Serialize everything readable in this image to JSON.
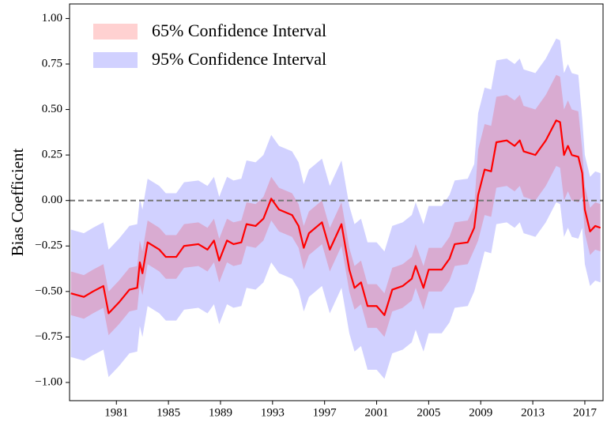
{
  "chart_data": {
    "type": "band-line",
    "y_label": "Bias Coefficient",
    "xlim": [
      1977.4,
      2018.4
    ],
    "xticks": [
      1981,
      1985,
      1989,
      1993,
      1997,
      2001,
      2005,
      2009,
      2013,
      2017
    ],
    "ylim": [
      -1.1,
      1.08
    ],
    "yticks": [
      {
        "value": -1,
        "label": "−1.00"
      },
      {
        "value": -0.75,
        "label": "−0.75"
      },
      {
        "value": -0.5,
        "label": "−0.50"
      },
      {
        "value": -0.25,
        "label": "−0.25"
      },
      {
        "value": 0,
        "label": "0.00"
      },
      {
        "value": 0.25,
        "label": "0.25"
      },
      {
        "value": 0.5,
        "label": "0.50"
      },
      {
        "value": 0.75,
        "label": "0.75"
      },
      {
        "value": 1,
        "label": "1.00"
      }
    ],
    "hline": 0,
    "hline_color": "#777777",
    "legend_position": "upper-left",
    "x": [
      1977.5,
      1978.5,
      1979.2,
      1980.0,
      1980.4,
      1981.2,
      1982.0,
      1982.6,
      1982.8,
      1983.0,
      1983.4,
      1984.3,
      1984.8,
      1985.6,
      1986.2,
      1987.3,
      1988.0,
      1988.5,
      1988.9,
      1989.5,
      1990.0,
      1990.6,
      1991.0,
      1991.7,
      1992.3,
      1992.9,
      1993.5,
      1994.5,
      1995.0,
      1995.4,
      1995.8,
      1996.8,
      1997.4,
      1998.3,
      1998.9,
      1999.3,
      1999.8,
      2000.3,
      2001.0,
      2001.6,
      2002.2,
      2003.0,
      2003.7,
      2004.0,
      2004.6,
      2005.0,
      2006.0,
      2006.6,
      2007.0,
      2008.0,
      2008.5,
      2008.8,
      2009.3,
      2009.8,
      2010.2,
      2011.0,
      2011.6,
      2012.0,
      2012.3,
      2013.2,
      2014.0,
      2014.8,
      2015.1,
      2015.4,
      2015.7,
      2016.0,
      2016.5,
      2016.8,
      2017.0,
      2017.4,
      2017.8,
      2018.2
    ],
    "color": "#ff0000",
    "values": [
      -0.51,
      -0.53,
      -0.5,
      -0.47,
      -0.62,
      -0.56,
      -0.49,
      -0.48,
      -0.34,
      -0.4,
      -0.23,
      -0.27,
      -0.31,
      -0.31,
      -0.25,
      -0.24,
      -0.27,
      -0.22,
      -0.33,
      -0.22,
      -0.24,
      -0.23,
      -0.13,
      -0.14,
      -0.1,
      0.01,
      -0.05,
      -0.08,
      -0.14,
      -0.26,
      -0.18,
      -0.12,
      -0.27,
      -0.13,
      -0.38,
      -0.48,
      -0.45,
      -0.58,
      -0.58,
      -0.63,
      -0.49,
      -0.47,
      -0.43,
      -0.36,
      -0.48,
      -0.38,
      -0.38,
      -0.32,
      -0.24,
      -0.23,
      -0.15,
      0.03,
      0.17,
      0.16,
      0.32,
      0.33,
      0.3,
      0.33,
      0.27,
      0.25,
      0.33,
      0.44,
      0.43,
      0.25,
      0.3,
      0.25,
      0.24,
      0.15,
      -0.05,
      -0.17,
      -0.14,
      -0.15
    ],
    "bands": [
      {
        "name": "65% Confidence Interval",
        "color": "#ff0000",
        "opacity": 0.18,
        "lower": [
          -0.63,
          -0.65,
          -0.62,
          -0.59,
          -0.74,
          -0.68,
          -0.61,
          -0.6,
          -0.46,
          -0.52,
          -0.35,
          -0.39,
          -0.43,
          -0.43,
          -0.37,
          -0.36,
          -0.39,
          -0.34,
          -0.45,
          -0.34,
          -0.36,
          -0.35,
          -0.25,
          -0.26,
          -0.22,
          -0.11,
          -0.17,
          -0.2,
          -0.26,
          -0.38,
          -0.3,
          -0.24,
          -0.39,
          -0.25,
          -0.5,
          -0.6,
          -0.57,
          -0.7,
          -0.7,
          -0.75,
          -0.61,
          -0.59,
          -0.55,
          -0.48,
          -0.6,
          -0.5,
          -0.5,
          -0.44,
          -0.36,
          -0.35,
          -0.27,
          -0.22,
          -0.08,
          -0.09,
          0.07,
          0.08,
          0.05,
          0.08,
          0.02,
          0,
          0.08,
          0.19,
          0.18,
          0,
          0.05,
          0,
          -0.01,
          0.02,
          -0.18,
          -0.3,
          -0.27,
          -0.28
        ],
        "upper": [
          -0.39,
          -0.41,
          -0.38,
          -0.35,
          -0.5,
          -0.44,
          -0.37,
          -0.36,
          -0.22,
          -0.28,
          -0.11,
          -0.15,
          -0.19,
          -0.19,
          -0.13,
          -0.12,
          -0.15,
          -0.1,
          -0.21,
          -0.1,
          -0.12,
          -0.11,
          -0.01,
          -0.02,
          0.02,
          0.13,
          0.07,
          0.04,
          -0.02,
          -0.14,
          -0.06,
          0,
          -0.15,
          -0.01,
          -0.26,
          -0.36,
          -0.33,
          -0.46,
          -0.46,
          -0.51,
          -0.37,
          -0.35,
          -0.31,
          -0.24,
          -0.36,
          -0.26,
          -0.26,
          -0.2,
          -0.12,
          -0.11,
          -0.03,
          0.28,
          0.42,
          0.41,
          0.57,
          0.58,
          0.55,
          0.58,
          0.52,
          0.5,
          0.58,
          0.69,
          0.68,
          0.5,
          0.55,
          0.5,
          0.49,
          0.28,
          0.08,
          -0.04,
          -0.01,
          -0.02
        ]
      },
      {
        "name": "95% Confidence Interval",
        "color": "#0000ff",
        "opacity": 0.18,
        "lower": [
          -0.86,
          -0.88,
          -0.85,
          -0.82,
          -0.97,
          -0.91,
          -0.84,
          -0.83,
          -0.69,
          -0.75,
          -0.58,
          -0.62,
          -0.66,
          -0.66,
          -0.6,
          -0.59,
          -0.62,
          -0.57,
          -0.68,
          -0.57,
          -0.59,
          -0.58,
          -0.48,
          -0.49,
          -0.45,
          -0.34,
          -0.4,
          -0.43,
          -0.49,
          -0.61,
          -0.53,
          -0.47,
          -0.62,
          -0.48,
          -0.73,
          -0.83,
          -0.8,
          -0.93,
          -0.93,
          -0.98,
          -0.84,
          -0.82,
          -0.78,
          -0.71,
          -0.83,
          -0.73,
          -0.73,
          -0.67,
          -0.59,
          -0.58,
          -0.5,
          -0.42,
          -0.28,
          -0.29,
          -0.13,
          -0.12,
          -0.15,
          -0.12,
          -0.18,
          -0.2,
          -0.12,
          -0.01,
          -0.02,
          -0.2,
          -0.15,
          -0.2,
          -0.21,
          -0.15,
          -0.35,
          -0.47,
          -0.44,
          -0.45
        ],
        "upper": [
          -0.16,
          -0.18,
          -0.15,
          -0.12,
          -0.27,
          -0.21,
          -0.14,
          -0.13,
          0.01,
          -0.05,
          0.12,
          0.08,
          0.04,
          0.04,
          0.1,
          0.11,
          0.08,
          0.13,
          0.02,
          0.13,
          0.11,
          0.12,
          0.22,
          0.21,
          0.25,
          0.36,
          0.3,
          0.27,
          0.21,
          0.09,
          0.17,
          0.23,
          0.08,
          0.22,
          -0.03,
          -0.13,
          -0.1,
          -0.23,
          -0.23,
          -0.28,
          -0.14,
          -0.12,
          -0.08,
          -0.01,
          -0.13,
          -0.03,
          -0.03,
          0.03,
          0.11,
          0.12,
          0.2,
          0.48,
          0.62,
          0.61,
          0.77,
          0.78,
          0.75,
          0.78,
          0.72,
          0.7,
          0.78,
          0.89,
          0.88,
          0.7,
          0.75,
          0.7,
          0.69,
          0.45,
          0.25,
          0.13,
          0.16,
          0.15
        ]
      }
    ]
  }
}
